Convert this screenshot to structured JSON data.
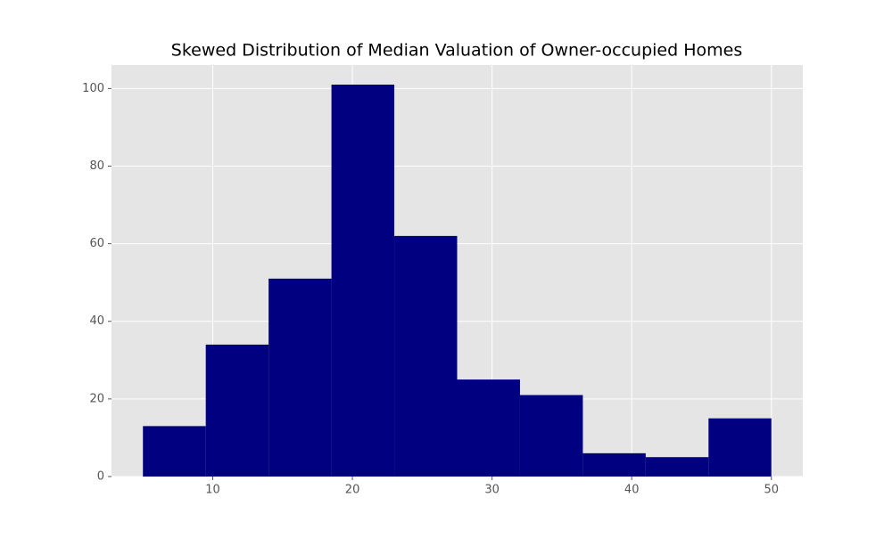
{
  "chart_data": {
    "type": "histogram",
    "title": "Skewed Distribution of Median Valuation of Owner-occupied Homes",
    "bins": [
      5,
      9.5,
      14,
      18.5,
      23,
      27.5,
      32,
      36.5,
      41,
      45.5,
      50
    ],
    "values": [
      13,
      34,
      51,
      101,
      62,
      25,
      21,
      6,
      5,
      15
    ],
    "color": "#000080",
    "xlim": [
      2.75,
      52.25
    ],
    "ylim": [
      0,
      106.05
    ],
    "xticks": [
      10,
      20,
      30,
      40,
      50
    ],
    "yticks": [
      0,
      20,
      40,
      60,
      80,
      100
    ],
    "grid": true
  }
}
